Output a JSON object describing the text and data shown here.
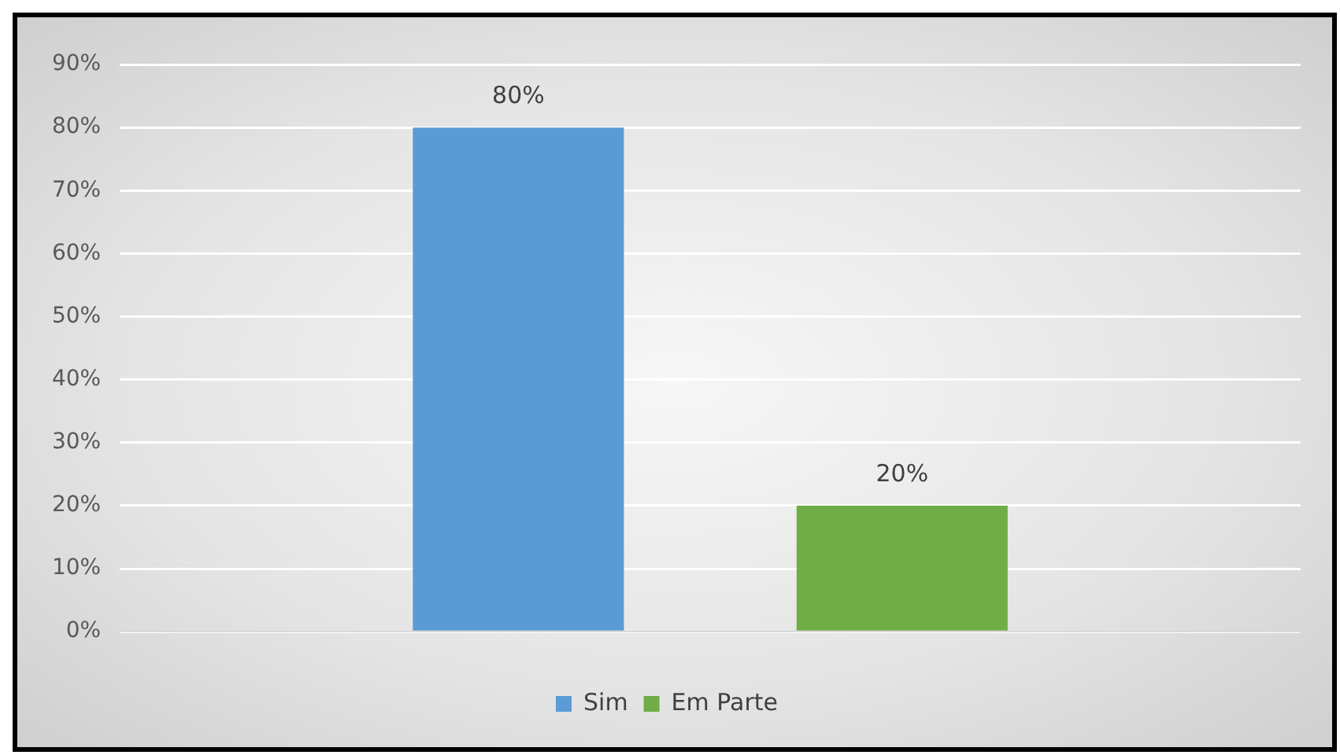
{
  "chart_data": {
    "type": "bar",
    "categories": [
      null
    ],
    "series": [
      {
        "name": "Sim",
        "color": "#5b9bd5",
        "values": [
          80
        ],
        "value_labels": [
          "80%"
        ]
      },
      {
        "name": "Em Parte",
        "color": "#70ad47",
        "values": [
          20
        ],
        "value_labels": [
          "20%"
        ]
      }
    ],
    "ylim": [
      0,
      90
    ],
    "yticks": [
      {
        "value": 0,
        "label": "0%"
      },
      {
        "value": 10,
        "label": "10%"
      },
      {
        "value": 20,
        "label": "20%"
      },
      {
        "value": 30,
        "label": "30%"
      },
      {
        "value": 40,
        "label": "40%"
      },
      {
        "value": 50,
        "label": "50%"
      },
      {
        "value": 60,
        "label": "60%"
      },
      {
        "value": 70,
        "label": "70%"
      },
      {
        "value": 80,
        "label": "80%"
      },
      {
        "value": 90,
        "label": "90%"
      }
    ],
    "grid": "y",
    "legend": "bottom"
  }
}
